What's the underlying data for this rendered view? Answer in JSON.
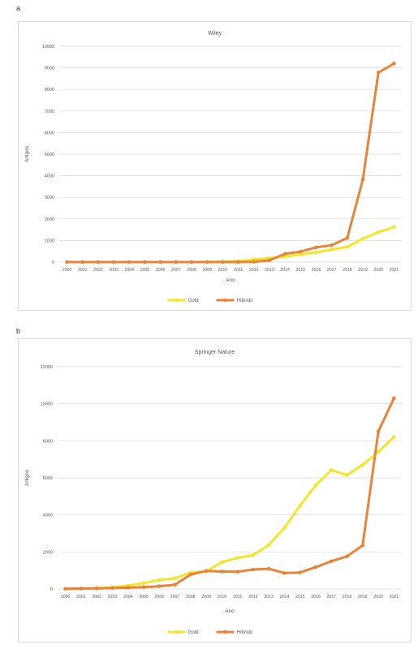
{
  "panels": [
    {
      "label": "a"
    },
    {
      "label": "b"
    }
  ],
  "colors": {
    "gold": "#f2e62b",
    "hibrido": "#e8843a",
    "grid": "#d9d9d9",
    "text": "#595959"
  },
  "chart_data": [
    {
      "type": "line",
      "title": "Wiley",
      "xlabel": "Ano",
      "ylabel": "Artigos",
      "ylim": [
        0,
        10000
      ],
      "yticks": [
        0,
        1000,
        2000,
        3000,
        4000,
        5000,
        6000,
        7000,
        8000,
        9000,
        10000
      ],
      "grid": true,
      "legend_position": "bottom",
      "categories": [
        "2000",
        "2001",
        "2002",
        "2003",
        "2004",
        "2005",
        "2006",
        "2007",
        "2008",
        "2009",
        "2010",
        "2011",
        "2012",
        "2013",
        "2014",
        "2015",
        "2016",
        "2017",
        "2018",
        "2019",
        "2020",
        "2021"
      ],
      "series": [
        {
          "name": "Gold",
          "values": [
            0,
            0,
            0,
            0,
            0,
            0,
            0,
            0,
            0,
            10,
            20,
            40,
            120,
            180,
            250,
            350,
            450,
            580,
            700,
            1080,
            1380,
            1620
          ]
        },
        {
          "name": "Híbrido",
          "values": [
            0,
            0,
            0,
            0,
            0,
            0,
            0,
            0,
            0,
            0,
            0,
            0,
            10,
            80,
            380,
            480,
            680,
            780,
            1120,
            3820,
            8780,
            9200
          ]
        }
      ]
    },
    {
      "type": "line",
      "title": "Springer Nature",
      "xlabel": "Ano",
      "ylabel": "Artigos",
      "ylim": [
        0,
        12000
      ],
      "yticks": [
        0,
        2000,
        4000,
        6000,
        8000,
        10000,
        12000
      ],
      "grid": true,
      "legend_position": "bottom",
      "categories": [
        "2000",
        "2001",
        "2002",
        "2003",
        "2004",
        "2005",
        "2006",
        "2007",
        "2008",
        "2009",
        "2010",
        "2011",
        "2012",
        "2013",
        "2014",
        "2015",
        "2016",
        "2017",
        "2018",
        "2019",
        "2020",
        "2021"
      ],
      "series": [
        {
          "name": "Gold",
          "values": [
            10,
            20,
            50,
            90,
            180,
            320,
            480,
            580,
            880,
            950,
            1450,
            1680,
            1820,
            2380,
            3300,
            4500,
            5600,
            6420,
            6150,
            6700,
            7400,
            8200
          ]
        },
        {
          "name": "Híbrido",
          "values": [
            10,
            20,
            30,
            50,
            70,
            100,
            150,
            230,
            780,
            970,
            940,
            930,
            1050,
            1090,
            860,
            890,
            1180,
            1500,
            1760,
            2350,
            8500,
            10300
          ]
        }
      ]
    }
  ]
}
